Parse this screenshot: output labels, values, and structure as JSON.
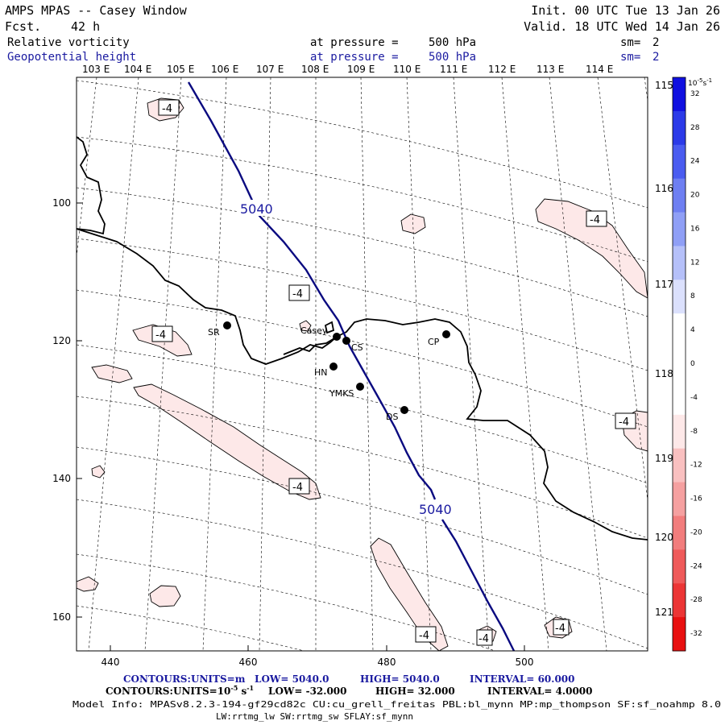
{
  "header": {
    "model_title": "AMPS MPAS -- Casey Window",
    "forecast_label": "Fcst.",
    "forecast_hours": "42 h",
    "init_line": "Init. 00 UTC Tue 13 Jan 26",
    "valid_line": "Valid. 18 UTC Wed 14 Jan 26",
    "field1": {
      "name": "Relative vorticity",
      "pressure_text": "at pressure =",
      "pressure_value": "500 hPa",
      "smooth_label": "sm=",
      "smooth_value": "2",
      "color": "#000000"
    },
    "field2": {
      "name": "Geopotential height",
      "pressure_text": "at pressure =",
      "pressure_value": "500 hPa",
      "smooth_label": "sm=",
      "smooth_value": "2",
      "color": "#1a1aa0"
    }
  },
  "map": {
    "x_ticks": [
      "440",
      "460",
      "480",
      "500"
    ],
    "y_ticks": [
      "100",
      "120",
      "140",
      "160"
    ],
    "longitude_top": [
      "103 E",
      "104 E",
      "105 E",
      "106 E",
      "107 E",
      "108 E",
      "109 E",
      "110 E",
      "111 E",
      "112 E",
      "113 E",
      "114 E"
    ],
    "longitude_right": [
      "115 E",
      "116 E",
      "117 E",
      "118 E",
      "119 E",
      "120 E",
      "121 E"
    ],
    "height_contour_label": "5040",
    "vorticity_labels": [
      "-4",
      "-4",
      "-4",
      "-4",
      "-4",
      "-4",
      "-4",
      "-4",
      "-4"
    ],
    "stations": [
      "SR",
      "Casey",
      "CS",
      "CP",
      "HN",
      "YMKS",
      "DS"
    ],
    "colors": {
      "height_contour": "#0a0a80",
      "negative_fill": "#fde8e8",
      "coast": "#000000"
    }
  },
  "colorbar": {
    "unit_label": "10",
    "unit_exp": "-5",
    "unit_suffix": "s",
    "unit_suffix_exp": "-1",
    "levels": [
      "32",
      "28",
      "24",
      "20",
      "16",
      "12",
      "8",
      "4",
      "0",
      "-4",
      "-8",
      "-12",
      "-16",
      "-20",
      "-24",
      "-28",
      "-32"
    ],
    "colors": [
      "#1010e0",
      "#2b3ae8",
      "#4a5cf0",
      "#6e7ff2",
      "#8f9ff6",
      "#b5c0f9",
      "#dbe0fc",
      "#ffffff",
      "#ffffff",
      "#ffffff",
      "#fde8e8",
      "#f9c0c0",
      "#f5a0a0",
      "#f27d7d",
      "#ef5a5a",
      "#ec3535",
      "#e81010"
    ]
  },
  "footer": {
    "line1": {
      "prefix": "CONTOURS:",
      "units": "UNITS=m",
      "low": "LOW=  5040.0",
      "high": "HIGH=  5040.0",
      "interval": "INTERVAL=   60.000"
    },
    "line2": {
      "prefix": "CONTOURS:",
      "units_a": "UNITS=10",
      "units_exp": "-5",
      "units_b": " s",
      "units_exp2": "-1",
      "low": "LOW= -32.000",
      "high": "HIGH=  32.000",
      "interval": "INTERVAL=   4.0000"
    },
    "model_info": "Model Info: MPASv8.2.3-194-gf29cd82c CU:cu_grell_freitas PBL:bl_mynn MP:mp_thompson SF:sf_noahmp 8.0",
    "model_info2": "LW:rrtmg_lw SW:rrtmg_sw SFLAY:sf_mynn"
  }
}
